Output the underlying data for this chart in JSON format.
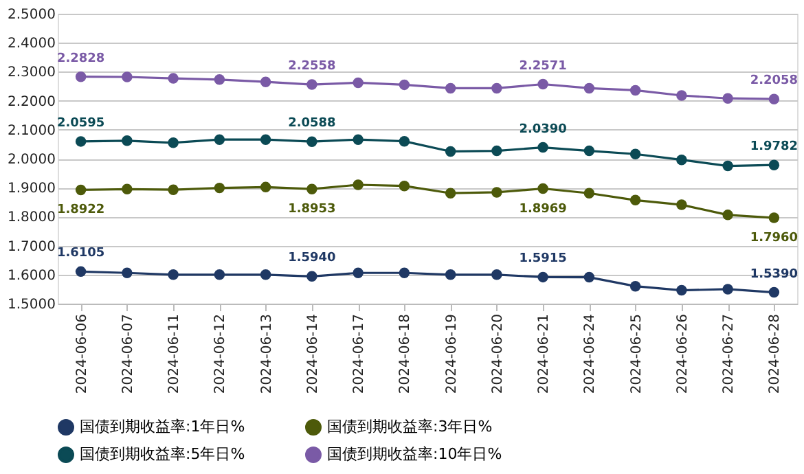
{
  "chart_data": {
    "type": "line",
    "categories": [
      "2024-06-06",
      "2024-06-07",
      "2024-06-11",
      "2024-06-12",
      "2024-06-13",
      "2024-06-14",
      "2024-06-17",
      "2024-06-18",
      "2024-06-19",
      "2024-06-20",
      "2024-06-21",
      "2024-06-24",
      "2024-06-25",
      "2024-06-26",
      "2024-06-27",
      "2024-06-28"
    ],
    "series": [
      {
        "name": "国债到期收益率:1年日%",
        "color": "#1f3864",
        "values": [
          1.6105,
          1.606,
          1.6,
          1.6,
          1.6,
          1.594,
          1.606,
          1.606,
          1.6,
          1.6,
          1.5915,
          1.591,
          1.56,
          1.546,
          1.55,
          1.539
        ],
        "value_labels": [
          "1.6105",
          null,
          null,
          null,
          null,
          "1.5940",
          null,
          null,
          null,
          null,
          "1.5915",
          null,
          null,
          null,
          null,
          "1.5390"
        ]
      },
      {
        "name": "国债到期收益率:3年日%",
        "color": "#4d5a0a",
        "values": [
          1.8922,
          1.895,
          1.893,
          1.899,
          1.902,
          1.8953,
          1.91,
          1.906,
          1.881,
          1.884,
          1.8969,
          1.881,
          1.857,
          1.841,
          1.806,
          1.796
        ],
        "value_labels": [
          "1.8922",
          null,
          null,
          null,
          null,
          "1.8953",
          null,
          null,
          null,
          null,
          "1.8969",
          null,
          null,
          null,
          null,
          "1.7960"
        ]
      },
      {
        "name": "国债到期收益率:5年日%",
        "color": "#0b4a55",
        "values": [
          2.0595,
          2.062,
          2.055,
          2.066,
          2.066,
          2.0588,
          2.066,
          2.06,
          2.025,
          2.027,
          2.039,
          2.027,
          2.016,
          1.996,
          1.975,
          1.9782
        ],
        "value_labels": [
          "2.0595",
          null,
          null,
          null,
          null,
          "2.0588",
          null,
          null,
          null,
          null,
          "2.0390",
          null,
          null,
          null,
          null,
          "1.9782"
        ]
      },
      {
        "name": "国债到期收益率:10年日%",
        "color": "#7a5aa6",
        "values": [
          2.2828,
          2.282,
          2.277,
          2.273,
          2.265,
          2.2558,
          2.262,
          2.255,
          2.243,
          2.243,
          2.2571,
          2.243,
          2.236,
          2.218,
          2.208,
          2.2058
        ],
        "value_labels": [
          "2.2828",
          null,
          null,
          null,
          null,
          "2.2558",
          null,
          null,
          null,
          null,
          "2.2571",
          null,
          null,
          null,
          null,
          "2.2058"
        ]
      }
    ],
    "ylim": [
      1.5,
      2.5
    ],
    "yticks": [
      {
        "value": 1.5,
        "label": "1.5000"
      },
      {
        "value": 1.6,
        "label": "1.6000"
      },
      {
        "value": 1.7,
        "label": "1.7000"
      },
      {
        "value": 1.8,
        "label": "1.8000"
      },
      {
        "value": 1.9,
        "label": "1.9000"
      },
      {
        "value": 2.0,
        "label": "2.0000"
      },
      {
        "value": 2.1,
        "label": "2.1000"
      },
      {
        "value": 2.2,
        "label": "2.2000"
      },
      {
        "value": 2.3,
        "label": "2.3000"
      },
      {
        "value": 2.4,
        "label": "2.4000"
      },
      {
        "value": 2.5,
        "label": "2.5000"
      }
    ],
    "grid": "y",
    "legend": "bottom",
    "marker": "circle",
    "line_style": "solid"
  }
}
